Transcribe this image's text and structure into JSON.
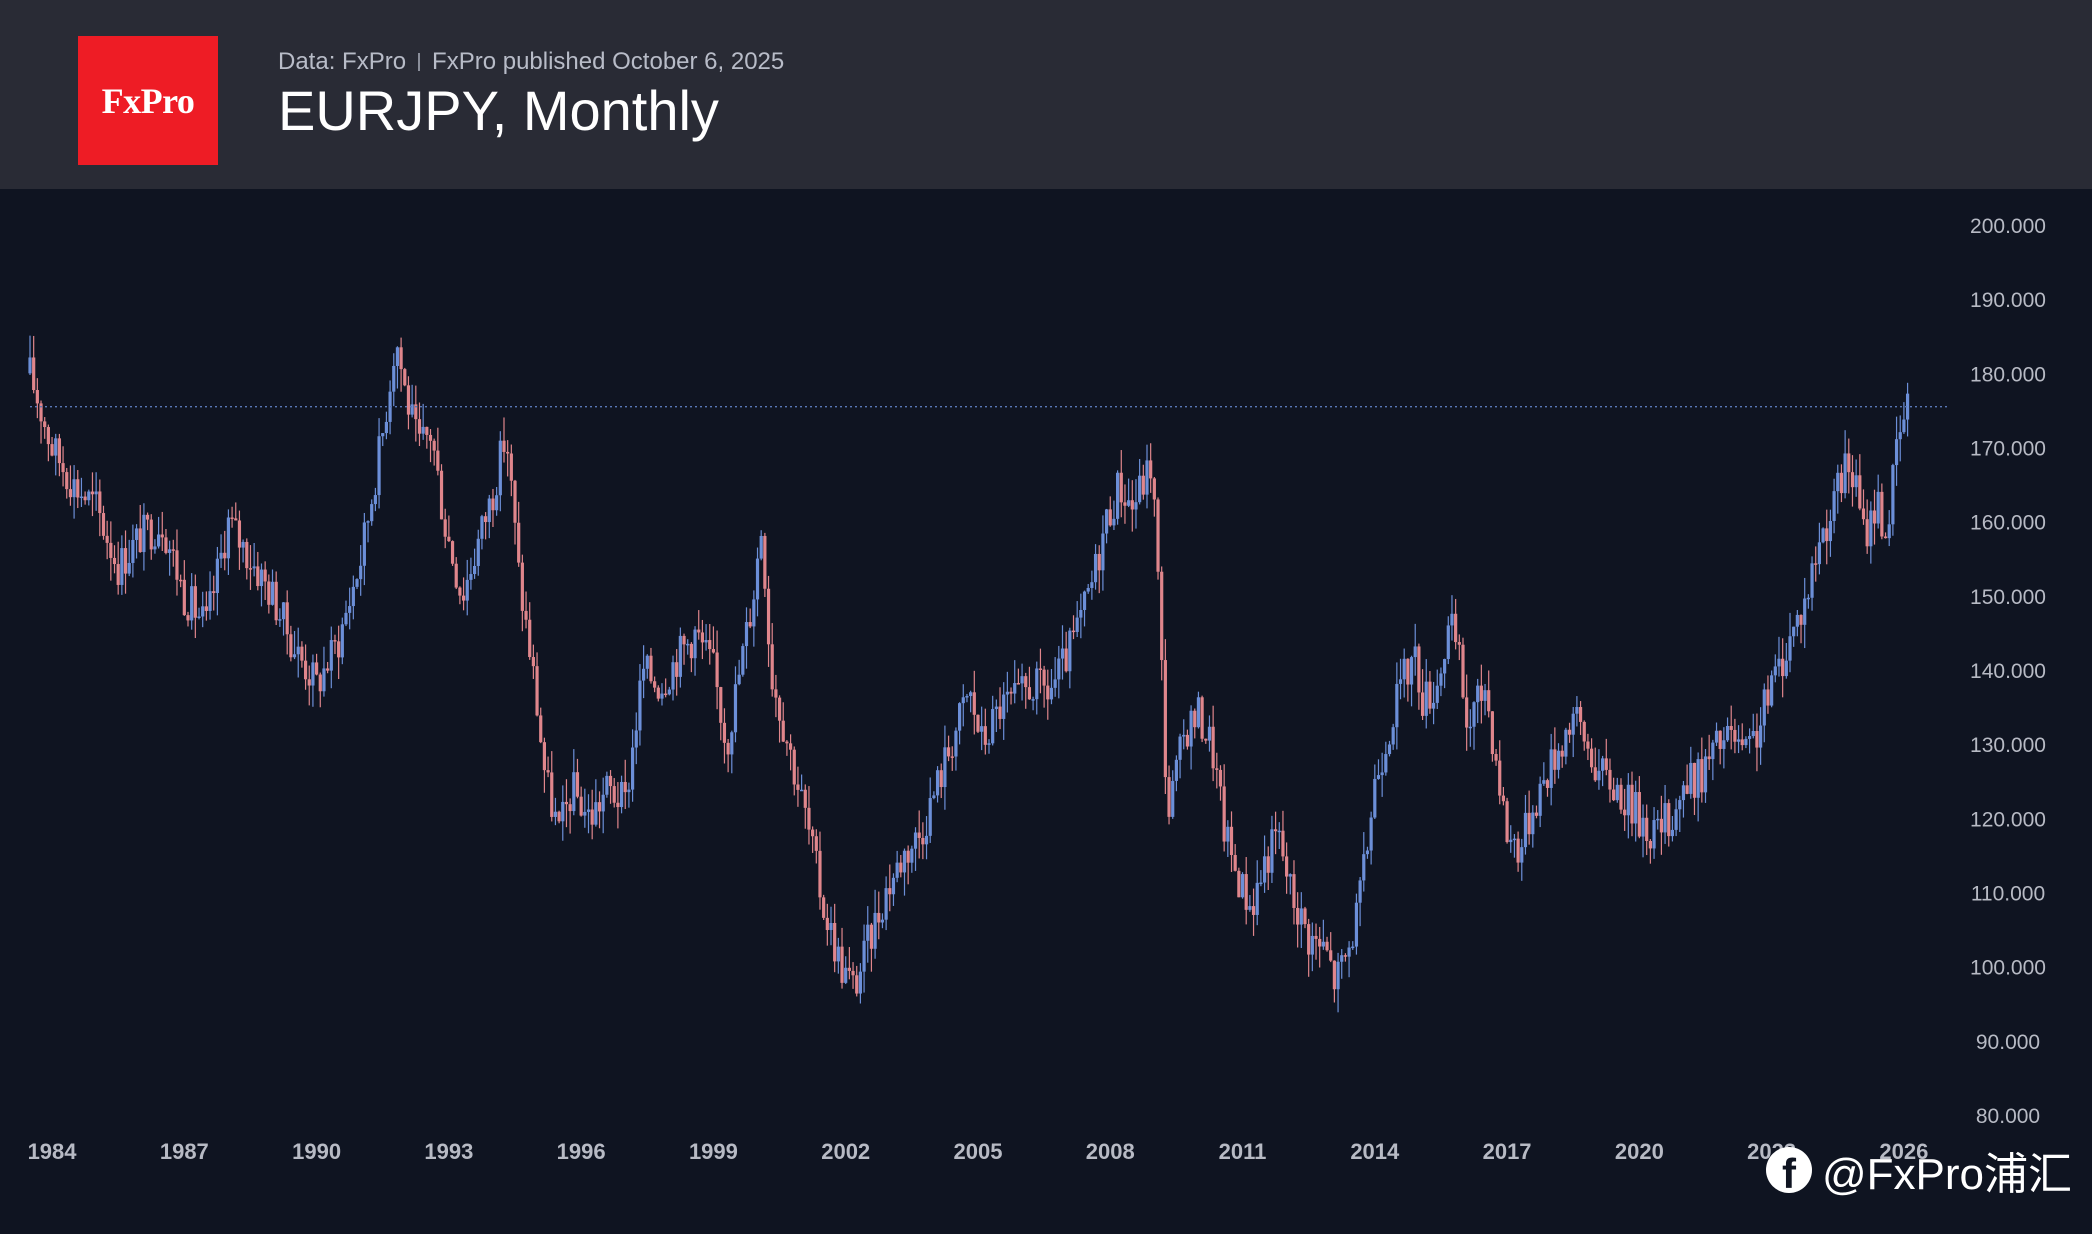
{
  "header": {
    "logo": "FxPro",
    "source": "Data: FxPro",
    "published": "FxPro published October 6, 2025",
    "title": "EURJPY, Monthly"
  },
  "watermark": {
    "text": "@FxPro浦汇",
    "icon": "facebook-icon"
  },
  "colors": {
    "background": "#0f1421",
    "header_bg": "#292b35",
    "logo_bg": "#ee1c25",
    "up": "#6c8fd8",
    "down": "#e0868c",
    "axis_text": "#b7bac4",
    "price_line": "#5a78b8"
  },
  "chart_data": {
    "type": "candlestick",
    "symbol": "EURJPY",
    "timeframe": "Monthly",
    "ylim": [
      80,
      200
    ],
    "y_ticks": [
      "80.000",
      "90.000",
      "100.000",
      "110.000",
      "120.000",
      "130.000",
      "140.000",
      "150.000",
      "160.000",
      "170.000",
      "180.000",
      "190.000",
      "200.000"
    ],
    "x_ticks": [
      "1984",
      "1987",
      "1990",
      "1993",
      "1996",
      "1999",
      "2002",
      "2005",
      "2008",
      "2011",
      "2014",
      "2017",
      "2020",
      "2023",
      "2026"
    ],
    "x_range": [
      1983.5,
      2027.0
    ],
    "last_price_line": 175.5,
    "price_path": [
      [
        1983.5,
        180
      ],
      [
        1984.0,
        170
      ],
      [
        1984.5,
        165
      ],
      [
        1985.0,
        162
      ],
      [
        1985.5,
        154
      ],
      [
        1986.0,
        158
      ],
      [
        1986.5,
        160
      ],
      [
        1987.0,
        150
      ],
      [
        1987.5,
        146
      ],
      [
        1988.0,
        160
      ],
      [
        1988.5,
        155
      ],
      [
        1989.0,
        150
      ],
      [
        1989.5,
        143
      ],
      [
        1990.0,
        138
      ],
      [
        1990.5,
        144
      ],
      [
        1991.0,
        155
      ],
      [
        1991.5,
        172
      ],
      [
        1991.8,
        185
      ],
      [
        1992.0,
        178
      ],
      [
        1992.3,
        170
      ],
      [
        1992.6,
        172
      ],
      [
        1992.9,
        160
      ],
      [
        1993.3,
        150
      ],
      [
        1993.7,
        158
      ],
      [
        1994.0,
        164
      ],
      [
        1994.3,
        172
      ],
      [
        1994.6,
        152
      ],
      [
        1994.9,
        140
      ],
      [
        1995.2,
        125
      ],
      [
        1995.5,
        118
      ],
      [
        1995.8,
        124
      ],
      [
        1996.2,
        120
      ],
      [
        1996.6,
        124
      ],
      [
        1997.0,
        122
      ],
      [
        1997.4,
        140
      ],
      [
        1997.8,
        138
      ],
      [
        1998.2,
        142
      ],
      [
        1998.6,
        145
      ],
      [
        1999.0,
        140
      ],
      [
        1999.3,
        130
      ],
      [
        1999.6,
        140
      ],
      [
        1999.9,
        150
      ],
      [
        2000.1,
        160
      ],
      [
        2000.3,
        140
      ],
      [
        2000.7,
        130
      ],
      [
        2001.1,
        120
      ],
      [
        2001.5,
        108
      ],
      [
        2001.9,
        100
      ],
      [
        2002.2,
        97
      ],
      [
        2002.5,
        103
      ],
      [
        2002.9,
        110
      ],
      [
        2003.3,
        115
      ],
      [
        2003.7,
        118
      ],
      [
        2004.1,
        125
      ],
      [
        2004.5,
        132
      ],
      [
        2004.8,
        137
      ],
      [
        2005.1,
        130
      ],
      [
        2005.5,
        135
      ],
      [
        2005.9,
        136
      ],
      [
        2006.2,
        138
      ],
      [
        2006.6,
        137
      ],
      [
        2006.9,
        140
      ],
      [
        2007.3,
        146
      ],
      [
        2007.6,
        152
      ],
      [
        2007.9,
        160
      ],
      [
        2008.2,
        165
      ],
      [
        2008.5,
        162
      ],
      [
        2008.8,
        166
      ],
      [
        2008.95,
        168
      ],
      [
        2009.1,
        150
      ],
      [
        2009.3,
        120
      ],
      [
        2009.7,
        132
      ],
      [
        2010.0,
        134
      ],
      [
        2010.3,
        130
      ],
      [
        2010.6,
        118
      ],
      [
        2010.9,
        112
      ],
      [
        2011.2,
        108
      ],
      [
        2011.5,
        114
      ],
      [
        2011.8,
        118
      ],
      [
        2012.1,
        110
      ],
      [
        2012.5,
        104
      ],
      [
        2012.9,
        102
      ],
      [
        2013.1,
        98
      ],
      [
        2013.4,
        102
      ],
      [
        2013.7,
        110
      ],
      [
        2014.0,
        125
      ],
      [
        2014.3,
        132
      ],
      [
        2014.6,
        138
      ],
      [
        2014.9,
        142
      ],
      [
        2015.1,
        136
      ],
      [
        2015.4,
        138
      ],
      [
        2015.7,
        146
      ],
      [
        2015.9,
        142
      ],
      [
        2016.1,
        132
      ],
      [
        2016.5,
        138
      ],
      [
        2016.8,
        126
      ],
      [
        2017.0,
        118
      ],
      [
        2017.3,
        116
      ],
      [
        2017.6,
        122
      ],
      [
        2017.9,
        126
      ],
      [
        2018.2,
        130
      ],
      [
        2018.5,
        134
      ],
      [
        2018.8,
        130
      ],
      [
        2019.1,
        126
      ],
      [
        2019.5,
        124
      ],
      [
        2019.9,
        121
      ],
      [
        2020.3,
        118
      ],
      [
        2020.7,
        120
      ],
      [
        2021.0,
        124
      ],
      [
        2021.4,
        126
      ],
      [
        2021.8,
        130
      ],
      [
        2022.1,
        131
      ],
      [
        2022.4,
        128
      ],
      [
        2022.7,
        132
      ],
      [
        2023.0,
        138
      ],
      [
        2023.4,
        144
      ],
      [
        2023.8,
        150
      ],
      [
        2024.1,
        158
      ],
      [
        2024.4,
        162
      ],
      [
        2024.7,
        168
      ],
      [
        2024.9,
        165
      ],
      [
        2025.1,
        158
      ],
      [
        2025.4,
        163
      ],
      [
        2025.6,
        158
      ],
      [
        2025.8,
        168
      ],
      [
        2026.0,
        174
      ],
      [
        2026.1,
        175.5
      ]
    ]
  }
}
